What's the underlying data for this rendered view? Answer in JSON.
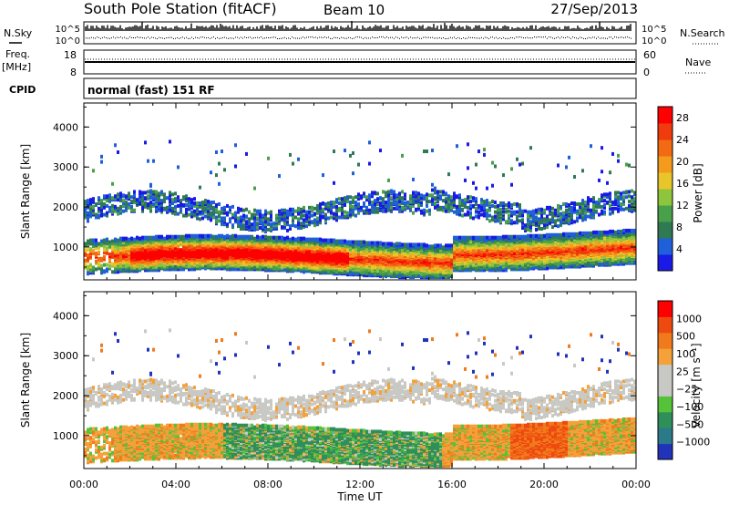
{
  "header": {
    "station": "South Pole Station (fitACF)",
    "beam": "Beam 10",
    "date": "27/Sep/2013"
  },
  "noise_panel": {
    "left_label": "N.Sky",
    "right_label": "N.Search",
    "yticks_left": [
      "10^5",
      "10^0"
    ],
    "yticks_right": [
      "10^5",
      "10^0"
    ]
  },
  "freq_panel": {
    "left_label_line1": "Freq.",
    "left_label_line2": "[MHz]",
    "right_label": "Nave",
    "yticks_left": [
      "18",
      "8"
    ],
    "yticks_right": [
      "60",
      "0"
    ]
  },
  "cpid_panel": {
    "label": "CPID",
    "text": "normal (fast) 151 RF"
  },
  "chart_data": [
    {
      "type": "heatmap",
      "parameter": "Power",
      "ylabel": "Slant Range [km]",
      "xlabel": "Time UT",
      "x_ticks": [
        "00:00",
        "04:00",
        "08:00",
        "12:00",
        "16:00",
        "20:00",
        "00:00"
      ],
      "x_range_hours": [
        0,
        24
      ],
      "y_ticks": [
        1000,
        2000,
        3000,
        4000
      ],
      "y_range_km": [
        180,
        4600
      ],
      "colorbar_label": "Power [dB]",
      "colorbar_ticks": [
        "4",
        "8",
        "12",
        "16",
        "20",
        "24",
        "28"
      ],
      "colorbar_colors": [
        "#1a1ae6",
        "#1f5fd9",
        "#2f7a52",
        "#49a04a",
        "#8fc43d",
        "#e8c62a",
        "#f49a1c",
        "#f26a12",
        "#ef3b0d",
        "#ff0000"
      ]
    },
    {
      "type": "heatmap",
      "parameter": "Velocity",
      "ylabel": "Slant Range [km]",
      "xlabel": "Time UT",
      "x_ticks": [
        "00:00",
        "04:00",
        "08:00",
        "12:00",
        "16:00",
        "20:00",
        "00:00"
      ],
      "x_range_hours": [
        0,
        24
      ],
      "y_ticks": [
        1000,
        2000,
        3000,
        4000
      ],
      "y_range_km": [
        180,
        4600
      ],
      "colorbar_label": "Velocity [m s⁻¹]",
      "colorbar_ticks": [
        "1000",
        "500",
        "100",
        "25",
        "−25",
        "−100",
        "−500",
        "−1000"
      ],
      "colorbar_colors": [
        "#2233bb",
        "#2a7a8a",
        "#2f8f5a",
        "#56c23a",
        "#c8c8c4",
        "#c8c8c4",
        "#f4a13a",
        "#f07a1c",
        "#ee4a10",
        "#ff0000"
      ]
    }
  ],
  "bottom_axis": {
    "ticks": [
      "00:00",
      "04:00",
      "08:00",
      "12:00",
      "16:00",
      "20:00",
      "00:00"
    ],
    "label": "Time UT"
  }
}
